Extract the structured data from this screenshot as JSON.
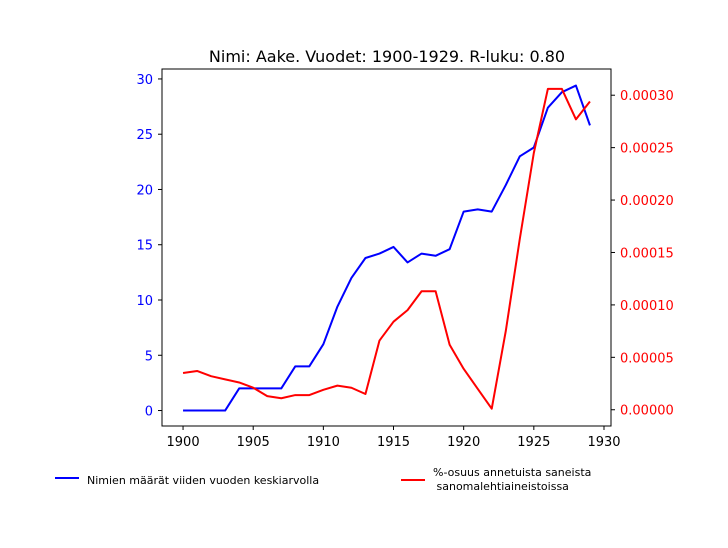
{
  "chart_data": {
    "type": "line",
    "title": "Nimi: Aake. Vuodet: 1900-1929. R-luku: 0.80",
    "xlabel": "",
    "x": [
      1900,
      1901,
      1902,
      1903,
      1904,
      1905,
      1906,
      1907,
      1908,
      1909,
      1910,
      1911,
      1912,
      1913,
      1914,
      1915,
      1916,
      1917,
      1918,
      1919,
      1920,
      1921,
      1922,
      1923,
      1924,
      1925,
      1926,
      1927,
      1928,
      1929
    ],
    "xlim": [
      1898.5,
      1930.5
    ],
    "xticks": [
      1900,
      1905,
      1910,
      1915,
      1920,
      1925,
      1930
    ],
    "xtick_labels": [
      "1900",
      "1905",
      "1910",
      "1915",
      "1920",
      "1925",
      "1930"
    ],
    "left_axis": {
      "ylabel": "",
      "ylim": [
        -1.4,
        30.9
      ],
      "ticks": [
        0,
        5,
        10,
        15,
        20,
        25,
        30
      ],
      "tick_labels": [
        "0",
        "5",
        "10",
        "15",
        "20",
        "25",
        "30"
      ],
      "color": "#0000ff"
    },
    "right_axis": {
      "ylabel": "",
      "ylim": [
        -1.55e-05,
        0.000325
      ],
      "ticks": [
        0,
        5e-05,
        0.0001,
        0.00015,
        0.0002,
        0.00025,
        0.0003
      ],
      "tick_labels": [
        "0.00000",
        "0.00005",
        "0.00010",
        "0.00015",
        "0.00020",
        "0.00025",
        "0.00030"
      ],
      "color": "#ff0000"
    },
    "series": [
      {
        "name": "Nimien määrät viiden vuoden keskiarvolla",
        "axis": "left",
        "color": "#0000ff",
        "values": [
          0,
          0,
          0,
          0,
          2,
          2,
          2,
          2,
          4,
          4,
          6,
          9.4,
          12,
          13.8,
          14.2,
          14.8,
          13.4,
          14.2,
          14,
          14.6,
          18,
          18.2,
          18,
          20.4,
          23,
          23.8,
          27.4,
          28.8,
          29.4,
          25.8
        ]
      },
      {
        "name": "%-osuus annetuista saneista\n sanomalehtiaineistoissa",
        "axis": "right",
        "color": "#ff0000",
        "values": [
          3.5e-05,
          3.7e-05,
          3.2e-05,
          2.9e-05,
          2.6e-05,
          2.1e-05,
          1.3e-05,
          1.1e-05,
          1.4e-05,
          1.4e-05,
          1.9e-05,
          2.3e-05,
          2.1e-05,
          1.5e-05,
          6.6e-05,
          8.4e-05,
          9.5e-05,
          0.000113,
          0.000113,
          6.2e-05,
          3.9e-05,
          2e-05,
          1e-06,
          7.5e-05,
          0.000163,
          0.000245,
          0.000306,
          0.000306,
          0.000277,
          0.000294
        ]
      }
    ],
    "legend": {
      "placement": "bottom",
      "entries": [
        {
          "label": "Nimien määrät viiden vuoden keskiarvolla",
          "color": "#0000ff"
        },
        {
          "label": "%-osuus annetuista saneista\n sanomalehtiaineistoissa",
          "color": "#ff0000"
        }
      ]
    },
    "grid": false
  }
}
